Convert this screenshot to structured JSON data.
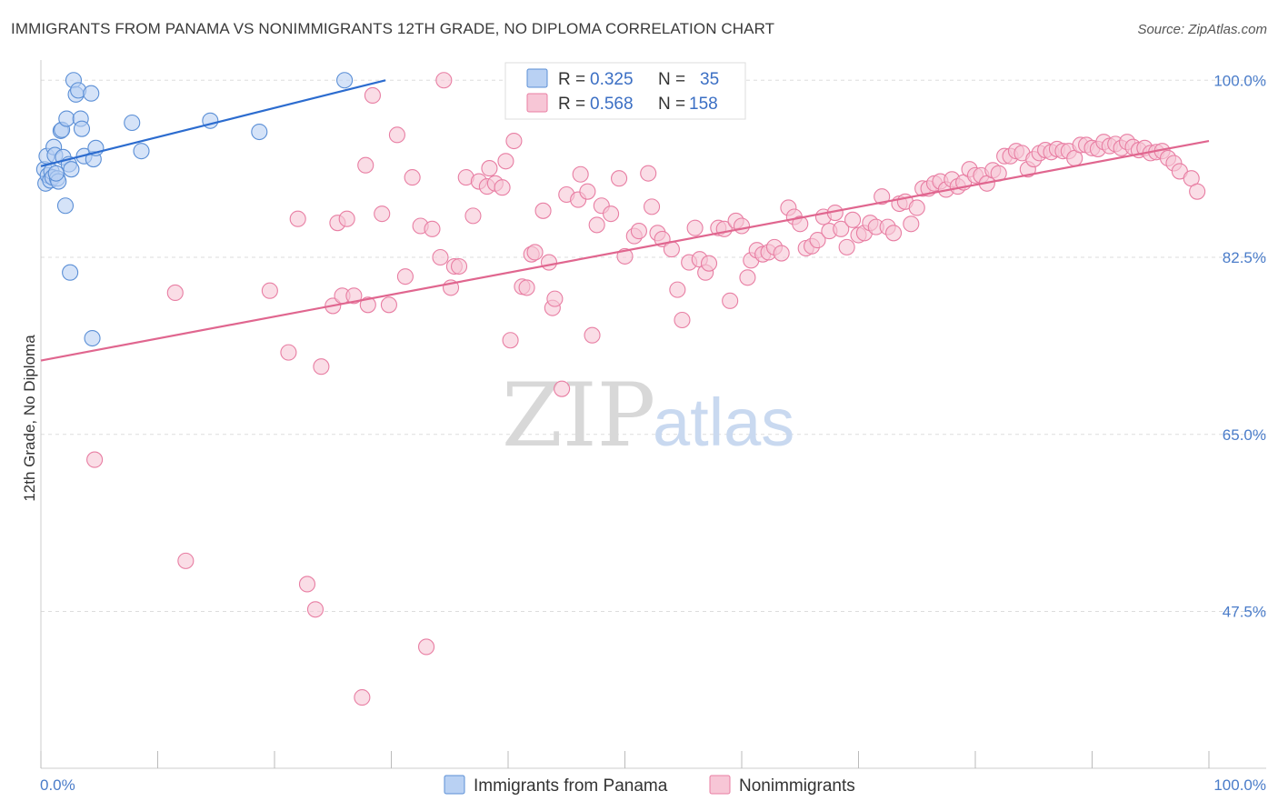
{
  "title": "IMMIGRANTS FROM PANAMA VS NONIMMIGRANTS 12TH GRADE, NO DIPLOMA CORRELATION CHART",
  "source": "Source: ZipAtlas.com",
  "watermark": {
    "zip": "ZIP",
    "atlas": "atlas"
  },
  "colors": {
    "blue": "#5b8fd6",
    "blue_fill": "#b9d1f3",
    "blue_line": "#2c6ccf",
    "pink": "#e87ea3",
    "pink_fill": "#f7c6d6",
    "pink_line": "#e0668f",
    "grid": "#dddddd",
    "tick_text": "#4a7cc9"
  },
  "legend": {
    "rows": [
      {
        "r_label": "R = ",
        "r_value": "0.325",
        "n_label": "N = ",
        "n_value": "35"
      },
      {
        "r_label": "R = ",
        "r_value": "0.568",
        "n_label": "N = ",
        "n_value": "158"
      }
    ]
  },
  "chart_data": {
    "type": "scatter",
    "title": "IMMIGRANTS FROM PANAMA VS NONIMMIGRANTS 12TH GRADE, NO DIPLOMA CORRELATION CHART",
    "xlabel": "",
    "ylabel": "12th Grade, No Diploma",
    "xlim": [
      0,
      100
    ],
    "ylim": [
      32,
      102
    ],
    "x_tick_labels": [
      "0.0%",
      "100.0%"
    ],
    "y_ticks": [
      47.5,
      65.0,
      82.5,
      100.0
    ],
    "y_tick_labels": [
      "47.5%",
      "65.0%",
      "82.5%",
      "100.0%"
    ],
    "grid": true,
    "legend_position": "top-center",
    "series": [
      {
        "name": "Immigrants from Panama",
        "color": "#5b8fd6",
        "trend": {
          "x": [
            0,
            29.5
          ],
          "y": [
            91.5,
            100.0
          ]
        },
        "points": [
          [
            0.3,
            91.2
          ],
          [
            0.4,
            89.8
          ],
          [
            0.5,
            92.5
          ],
          [
            0.6,
            90.6
          ],
          [
            0.8,
            90.1
          ],
          [
            0.9,
            91.0
          ],
          [
            1.0,
            90.4
          ],
          [
            1.1,
            93.4
          ],
          [
            1.2,
            92.6
          ],
          [
            1.4,
            90.3
          ],
          [
            1.5,
            90.0
          ],
          [
            1.7,
            95.0
          ],
          [
            1.8,
            95.1
          ],
          [
            1.9,
            92.4
          ],
          [
            2.1,
            87.6
          ],
          [
            2.2,
            96.2
          ],
          [
            2.4,
            91.7
          ],
          [
            2.5,
            81.0
          ],
          [
            2.6,
            91.2
          ],
          [
            2.8,
            100.0
          ],
          [
            3.0,
            98.6
          ],
          [
            3.2,
            99.0
          ],
          [
            3.4,
            96.2
          ],
          [
            3.5,
            95.2
          ],
          [
            3.7,
            92.5
          ],
          [
            4.3,
            98.7
          ],
          [
            4.5,
            92.2
          ],
          [
            4.7,
            93.3
          ],
          [
            7.8,
            95.8
          ],
          [
            8.6,
            93.0
          ],
          [
            14.5,
            96.0
          ],
          [
            18.7,
            94.9
          ],
          [
            26.0,
            100.0
          ],
          [
            4.4,
            74.5
          ],
          [
            1.3,
            90.8
          ]
        ]
      },
      {
        "name": "Nonimmigrants",
        "color": "#e87ea3",
        "trend": {
          "x": [
            0,
            100
          ],
          "y": [
            72.3,
            94.0
          ]
        },
        "points": [
          [
            4.6,
            62.5
          ],
          [
            11.5,
            79.0
          ],
          [
            12.4,
            52.5
          ],
          [
            19.6,
            79.2
          ],
          [
            21.2,
            73.1
          ],
          [
            22.0,
            86.3
          ],
          [
            22.8,
            50.2
          ],
          [
            23.5,
            47.7
          ],
          [
            24.0,
            71.7
          ],
          [
            25.0,
            77.7
          ],
          [
            25.4,
            85.9
          ],
          [
            25.8,
            78.7
          ],
          [
            26.2,
            86.3
          ],
          [
            26.8,
            78.7
          ],
          [
            27.5,
            39.0
          ],
          [
            27.8,
            91.6
          ],
          [
            28.0,
            77.8
          ],
          [
            28.4,
            98.5
          ],
          [
            29.2,
            86.8
          ],
          [
            29.8,
            77.8
          ],
          [
            30.5,
            94.6
          ],
          [
            31.2,
            80.6
          ],
          [
            31.8,
            90.4
          ],
          [
            32.5,
            85.6
          ],
          [
            33.0,
            44.0
          ],
          [
            33.5,
            85.3
          ],
          [
            34.2,
            82.5
          ],
          [
            34.5,
            100.0
          ],
          [
            35.1,
            79.5
          ],
          [
            35.4,
            81.6
          ],
          [
            35.8,
            81.6
          ],
          [
            36.4,
            90.4
          ],
          [
            37.0,
            86.6
          ],
          [
            37.5,
            90.0
          ],
          [
            38.2,
            89.5
          ],
          [
            38.4,
            91.3
          ],
          [
            38.9,
            89.8
          ],
          [
            39.5,
            89.4
          ],
          [
            39.8,
            92.0
          ],
          [
            40.2,
            74.3
          ],
          [
            40.5,
            94.0
          ],
          [
            41.2,
            79.6
          ],
          [
            41.6,
            79.5
          ],
          [
            42.0,
            82.8
          ],
          [
            42.3,
            83.0
          ],
          [
            43.0,
            87.1
          ],
          [
            43.5,
            82.0
          ],
          [
            43.8,
            77.5
          ],
          [
            44.0,
            78.4
          ],
          [
            44.6,
            69.5
          ],
          [
            45.0,
            88.7
          ],
          [
            46.0,
            88.2
          ],
          [
            46.2,
            90.7
          ],
          [
            46.8,
            89.0
          ],
          [
            47.2,
            74.8
          ],
          [
            47.6,
            85.7
          ],
          [
            48.0,
            87.6
          ],
          [
            48.8,
            86.8
          ],
          [
            49.5,
            90.3
          ],
          [
            50.0,
            82.6
          ],
          [
            50.8,
            84.6
          ],
          [
            51.2,
            85.1
          ],
          [
            52.0,
            90.8
          ],
          [
            52.3,
            87.5
          ],
          [
            52.8,
            84.9
          ],
          [
            53.2,
            84.3
          ],
          [
            54.0,
            83.3
          ],
          [
            54.5,
            79.3
          ],
          [
            54.9,
            76.3
          ],
          [
            55.5,
            82.0
          ],
          [
            56.0,
            85.4
          ],
          [
            56.4,
            82.3
          ],
          [
            56.9,
            81.0
          ],
          [
            57.2,
            81.9
          ],
          [
            58.0,
            85.4
          ],
          [
            58.5,
            85.3
          ],
          [
            59.0,
            78.2
          ],
          [
            59.5,
            86.1
          ],
          [
            60.0,
            85.6
          ],
          [
            60.5,
            80.5
          ],
          [
            60.8,
            82.2
          ],
          [
            61.3,
            83.2
          ],
          [
            61.8,
            82.8
          ],
          [
            62.3,
            83.0
          ],
          [
            62.8,
            83.5
          ],
          [
            63.4,
            82.9
          ],
          [
            64.0,
            87.4
          ],
          [
            64.5,
            86.5
          ],
          [
            65.0,
            85.8
          ],
          [
            65.5,
            83.4
          ],
          [
            66.0,
            83.6
          ],
          [
            66.5,
            84.2
          ],
          [
            67.0,
            86.5
          ],
          [
            67.5,
            85.1
          ],
          [
            68.0,
            86.9
          ],
          [
            68.5,
            85.3
          ],
          [
            69.0,
            83.5
          ],
          [
            69.5,
            86.2
          ],
          [
            70.0,
            84.7
          ],
          [
            70.5,
            84.9
          ],
          [
            71.0,
            85.9
          ],
          [
            71.5,
            85.5
          ],
          [
            72.0,
            88.5
          ],
          [
            72.5,
            85.5
          ],
          [
            73.0,
            84.9
          ],
          [
            73.5,
            87.8
          ],
          [
            74.0,
            88.0
          ],
          [
            74.5,
            85.8
          ],
          [
            75.0,
            87.4
          ],
          [
            75.5,
            89.3
          ],
          [
            76.0,
            89.3
          ],
          [
            76.5,
            89.8
          ],
          [
            77.0,
            90.0
          ],
          [
            77.5,
            89.2
          ],
          [
            78.0,
            90.2
          ],
          [
            78.5,
            89.5
          ],
          [
            79.0,
            89.9
          ],
          [
            79.5,
            91.2
          ],
          [
            80.0,
            90.6
          ],
          [
            80.5,
            90.6
          ],
          [
            81.0,
            89.8
          ],
          [
            81.5,
            91.1
          ],
          [
            82.0,
            90.8
          ],
          [
            82.5,
            92.5
          ],
          [
            83.0,
            92.5
          ],
          [
            83.5,
            93.0
          ],
          [
            84.0,
            92.8
          ],
          [
            84.5,
            91.2
          ],
          [
            85.0,
            92.2
          ],
          [
            85.5,
            92.8
          ],
          [
            86.0,
            93.1
          ],
          [
            86.5,
            92.9
          ],
          [
            87.0,
            93.2
          ],
          [
            87.5,
            93.0
          ],
          [
            88.0,
            93.0
          ],
          [
            88.5,
            92.3
          ],
          [
            89.0,
            93.6
          ],
          [
            89.5,
            93.6
          ],
          [
            90.0,
            93.3
          ],
          [
            90.5,
            93.2
          ],
          [
            91.0,
            93.9
          ],
          [
            91.5,
            93.5
          ],
          [
            92.0,
            93.7
          ],
          [
            92.5,
            93.3
          ],
          [
            93.0,
            93.9
          ],
          [
            93.5,
            93.4
          ],
          [
            94.0,
            93.1
          ],
          [
            94.5,
            93.3
          ],
          [
            95.0,
            92.8
          ],
          [
            95.5,
            92.9
          ],
          [
            96.0,
            93.0
          ],
          [
            96.5,
            92.3
          ],
          [
            97.0,
            91.8
          ],
          [
            97.5,
            91.0
          ],
          [
            98.5,
            90.3
          ],
          [
            99.0,
            89.0
          ]
        ]
      }
    ]
  }
}
